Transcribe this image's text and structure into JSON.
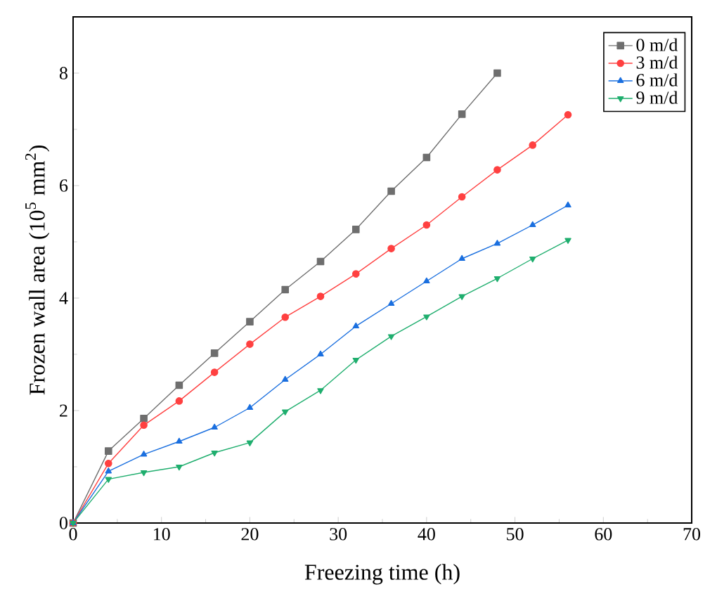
{
  "chart_data": {
    "type": "line",
    "xlabel": "Freezing time (h)",
    "ylabel": "Frozen wall area (10$^{5}$ mm$^{2}$)",
    "xlim": [
      0,
      70
    ],
    "xticks": [
      0,
      10,
      20,
      30,
      40,
      50,
      60,
      70
    ],
    "ylim": [
      0,
      9
    ],
    "yticks": [
      0,
      2,
      4,
      6,
      8
    ],
    "legend": "top right",
    "grid": false,
    "series": [
      {
        "name": "0 m/d",
        "color": "#6e6e6e",
        "marker": "square",
        "x": [
          0,
          4,
          8,
          12,
          16,
          20,
          24,
          28,
          32,
          36,
          40,
          44,
          48
        ],
        "values": [
          0,
          1.28,
          1.86,
          2.45,
          3.02,
          3.58,
          4.15,
          4.65,
          5.22,
          5.9,
          6.5,
          7.27,
          8.0
        ]
      },
      {
        "name": "3 m/d",
        "color": "#ff4040",
        "marker": "circle",
        "x": [
          0,
          4,
          8,
          12,
          16,
          20,
          24,
          28,
          32,
          36,
          40,
          44,
          48,
          52,
          56
        ],
        "values": [
          0,
          1.06,
          1.74,
          2.17,
          2.68,
          3.18,
          3.66,
          4.03,
          4.43,
          4.88,
          5.3,
          5.8,
          6.28,
          6.72,
          7.26
        ]
      },
      {
        "name": "6 m/d",
        "color": "#1a6fdf",
        "marker": "triangle",
        "x": [
          0,
          4,
          8,
          12,
          16,
          20,
          24,
          28,
          32,
          36,
          40,
          44,
          48,
          52,
          56
        ],
        "values": [
          0,
          0.92,
          1.22,
          1.45,
          1.7,
          2.05,
          2.55,
          3.0,
          3.5,
          3.9,
          4.3,
          4.7,
          4.97,
          5.3,
          5.65
        ]
      },
      {
        "name": "9 m/d",
        "color": "#1fae6e",
        "marker": "triangle down",
        "x": [
          0,
          4,
          8,
          12,
          16,
          20,
          24,
          28,
          32,
          36,
          40,
          44,
          48,
          52,
          56
        ],
        "values": [
          0,
          0.78,
          0.9,
          1.0,
          1.25,
          1.43,
          1.98,
          2.36,
          2.9,
          3.32,
          3.67,
          4.03,
          4.35,
          4.7,
          5.03
        ]
      }
    ]
  }
}
